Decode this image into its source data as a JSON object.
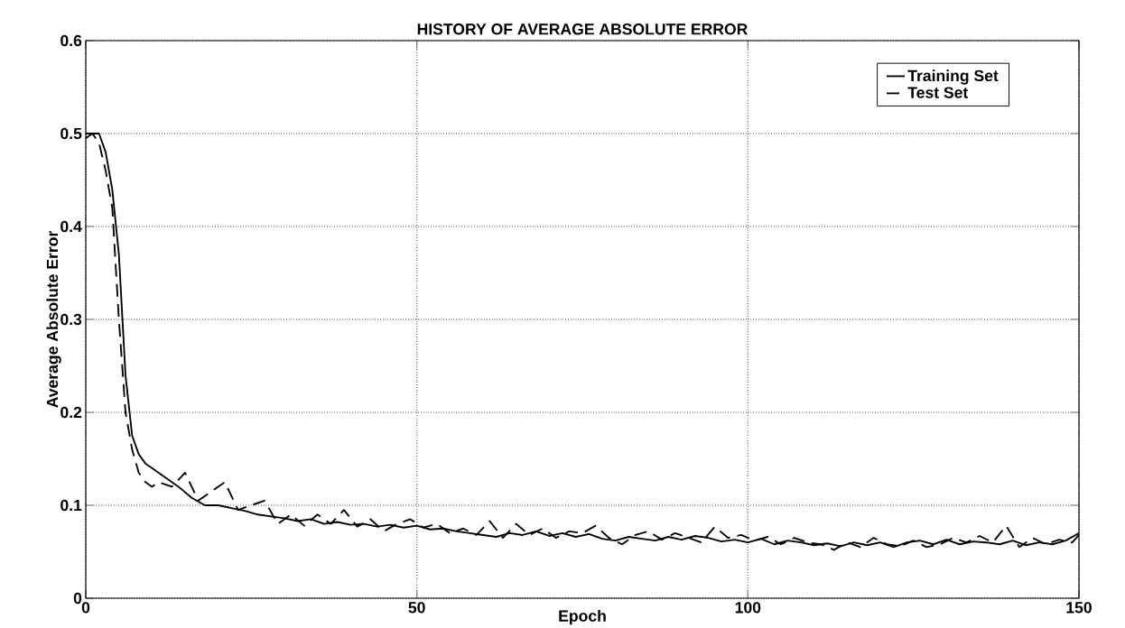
{
  "chart_data": {
    "type": "line",
    "title": "HISTORY OF AVERAGE ABSOLUTE ERROR",
    "xlabel": "Epoch",
    "ylabel": "Average Absolute Error",
    "xlim": [
      0,
      150
    ],
    "ylim": [
      0,
      0.6
    ],
    "xticks": [
      0,
      50,
      100,
      150
    ],
    "yticks": [
      0,
      0.1,
      0.2,
      0.3,
      0.4,
      0.5,
      0.6
    ],
    "grid": true,
    "legend": "top right",
    "series": [
      {
        "name": "Training Set",
        "color": "#000000",
        "line_style": "solid",
        "x": [
          0,
          1,
          2,
          3,
          4,
          5,
          6,
          7,
          8,
          9,
          10,
          12,
          14,
          16,
          18,
          20,
          22,
          24,
          26,
          28,
          30,
          32,
          34,
          36,
          38,
          40,
          42,
          44,
          46,
          48,
          50,
          52,
          54,
          56,
          58,
          60,
          62,
          64,
          66,
          68,
          70,
          72,
          74,
          76,
          78,
          80,
          82,
          84,
          86,
          88,
          90,
          92,
          94,
          96,
          98,
          100,
          102,
          104,
          106,
          108,
          110,
          112,
          114,
          116,
          118,
          120,
          122,
          124,
          126,
          128,
          130,
          132,
          134,
          136,
          138,
          140,
          142,
          144,
          146,
          148,
          150
        ],
        "values": [
          0.495,
          0.5,
          0.5,
          0.48,
          0.44,
          0.37,
          0.24,
          0.175,
          0.155,
          0.145,
          0.14,
          0.13,
          0.12,
          0.108,
          0.1,
          0.1,
          0.097,
          0.094,
          0.09,
          0.088,
          0.086,
          0.083,
          0.085,
          0.08,
          0.082,
          0.079,
          0.08,
          0.077,
          0.079,
          0.076,
          0.078,
          0.074,
          0.075,
          0.072,
          0.07,
          0.068,
          0.066,
          0.07,
          0.068,
          0.072,
          0.067,
          0.07,
          0.066,
          0.069,
          0.064,
          0.062,
          0.066,
          0.064,
          0.062,
          0.066,
          0.063,
          0.067,
          0.065,
          0.061,
          0.063,
          0.06,
          0.064,
          0.058,
          0.062,
          0.06,
          0.057,
          0.059,
          0.056,
          0.06,
          0.057,
          0.06,
          0.055,
          0.06,
          0.062,
          0.058,
          0.063,
          0.058,
          0.061,
          0.06,
          0.058,
          0.062,
          0.057,
          0.06,
          0.058,
          0.062,
          0.07
        ]
      },
      {
        "name": "Test Set",
        "color": "#000000",
        "line_style": "dashed",
        "x": [
          0,
          1,
          2,
          3,
          4,
          5,
          6,
          7,
          8,
          9,
          10,
          11,
          13,
          15,
          17,
          19,
          21,
          23,
          25,
          27,
          29,
          31,
          33,
          35,
          37,
          39,
          41,
          43,
          45,
          47,
          49,
          51,
          53,
          55,
          57,
          59,
          61,
          63,
          65,
          67,
          69,
          71,
          73,
          75,
          77,
          79,
          81,
          83,
          85,
          87,
          89,
          91,
          93,
          95,
          97,
          99,
          101,
          103,
          105,
          107,
          109,
          111,
          113,
          115,
          117,
          119,
          121,
          123,
          125,
          127,
          129,
          131,
          133,
          135,
          137,
          139,
          141,
          143,
          145,
          147,
          149,
          150
        ],
        "values": [
          0.5,
          0.5,
          0.49,
          0.46,
          0.42,
          0.3,
          0.2,
          0.16,
          0.135,
          0.125,
          0.12,
          0.125,
          0.12,
          0.135,
          0.105,
          0.115,
          0.125,
          0.095,
          0.1,
          0.105,
          0.08,
          0.09,
          0.078,
          0.09,
          0.08,
          0.095,
          0.077,
          0.085,
          0.072,
          0.08,
          0.085,
          0.076,
          0.08,
          0.07,
          0.075,
          0.068,
          0.083,
          0.065,
          0.08,
          0.068,
          0.075,
          0.065,
          0.072,
          0.07,
          0.078,
          0.065,
          0.058,
          0.068,
          0.072,
          0.063,
          0.07,
          0.065,
          0.06,
          0.077,
          0.065,
          0.068,
          0.062,
          0.066,
          0.058,
          0.065,
          0.06,
          0.058,
          0.052,
          0.06,
          0.055,
          0.065,
          0.058,
          0.056,
          0.062,
          0.055,
          0.058,
          0.065,
          0.06,
          0.067,
          0.06,
          0.078,
          0.055,
          0.065,
          0.058,
          0.063,
          0.06,
          0.068
        ]
      }
    ]
  }
}
